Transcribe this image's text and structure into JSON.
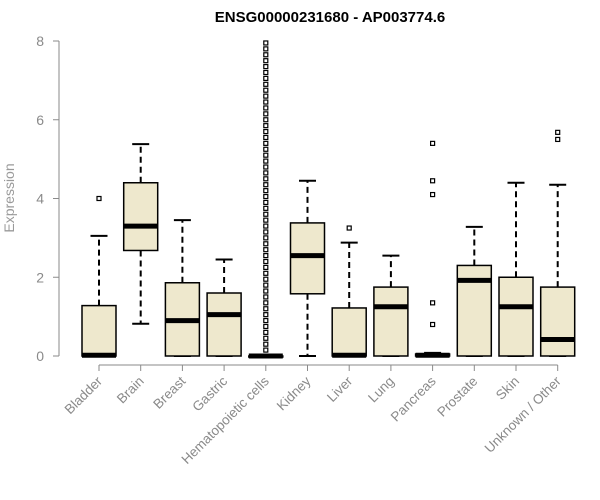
{
  "chart_data": {
    "type": "box",
    "title": "ENSG00000231680 - AP003774.6",
    "xlabel": "",
    "ylabel": "Expression",
    "ylim": [
      0,
      8
    ],
    "yticks": [
      0,
      2,
      4,
      6,
      8
    ],
    "grid": false,
    "legend": "none",
    "colors": {
      "box_fill": "#eee8cd",
      "box_stroke": "#000000",
      "axis": "#8a8a8a"
    },
    "categories": [
      "Bladder",
      "Brain",
      "Breast",
      "Gastric",
      "Hematopoietic cells",
      "Kidney",
      "Liver",
      "Lung",
      "Pancreas",
      "Prostate",
      "Skin",
      "Unknown / Other"
    ],
    "boxes": [
      {
        "q1": 0.0,
        "median": 0.02,
        "q3": 1.28,
        "whisker_low": 0.0,
        "whisker_high": 3.05,
        "outliers": [
          4.0
        ]
      },
      {
        "q1": 2.68,
        "median": 3.3,
        "q3": 4.4,
        "whisker_low": 0.82,
        "whisker_high": 5.38,
        "outliers": []
      },
      {
        "q1": 0.0,
        "median": 0.9,
        "q3": 1.86,
        "whisker_low": 0.0,
        "whisker_high": 3.45,
        "outliers": []
      },
      {
        "q1": 0.0,
        "median": 1.05,
        "q3": 1.6,
        "whisker_low": 0.0,
        "whisker_high": 2.45,
        "outliers": []
      },
      {
        "q1": 0.0,
        "median": 0.0,
        "q3": 0.0,
        "whisker_low": 0.0,
        "whisker_high": 0.0,
        "outliers": [
          0.15,
          0.3,
          0.45,
          0.6,
          0.75,
          0.9,
          1.05,
          1.2,
          1.35,
          1.5,
          1.65,
          1.8,
          1.95,
          2.1,
          2.25,
          2.4,
          2.55,
          2.7,
          2.85,
          3.0,
          3.15,
          3.3,
          3.45,
          3.6,
          3.75,
          3.9,
          4.05,
          4.2,
          4.35,
          4.5,
          4.65,
          4.8,
          4.95,
          5.1,
          5.25,
          5.4,
          5.55,
          5.7,
          5.85,
          6.0,
          6.15,
          6.3,
          6.45,
          6.6,
          6.75,
          6.9,
          7.05,
          7.2,
          7.35,
          7.5,
          7.65,
          7.8,
          7.95
        ]
      },
      {
        "q1": 1.58,
        "median": 2.55,
        "q3": 3.38,
        "whisker_low": 0.0,
        "whisker_high": 4.45,
        "outliers": []
      },
      {
        "q1": 0.0,
        "median": 0.02,
        "q3": 1.22,
        "whisker_low": 0.0,
        "whisker_high": 2.88,
        "outliers": [
          3.25
        ]
      },
      {
        "q1": 0.0,
        "median": 1.25,
        "q3": 1.75,
        "whisker_low": 0.0,
        "whisker_high": 2.55,
        "outliers": []
      },
      {
        "q1": 0.0,
        "median": 0.02,
        "q3": 0.05,
        "whisker_low": 0.0,
        "whisker_high": 0.08,
        "outliers": [
          0.8,
          1.35,
          4.1,
          4.45,
          5.4
        ]
      },
      {
        "q1": 0.0,
        "median": 1.92,
        "q3": 2.3,
        "whisker_low": 0.0,
        "whisker_high": 3.28,
        "outliers": []
      },
      {
        "q1": 0.0,
        "median": 1.25,
        "q3": 2.0,
        "whisker_low": 0.0,
        "whisker_high": 4.4,
        "outliers": []
      },
      {
        "q1": 0.0,
        "median": 0.42,
        "q3": 1.75,
        "whisker_low": 0.0,
        "whisker_high": 4.35,
        "outliers": [
          5.5,
          5.68
        ]
      }
    ]
  }
}
